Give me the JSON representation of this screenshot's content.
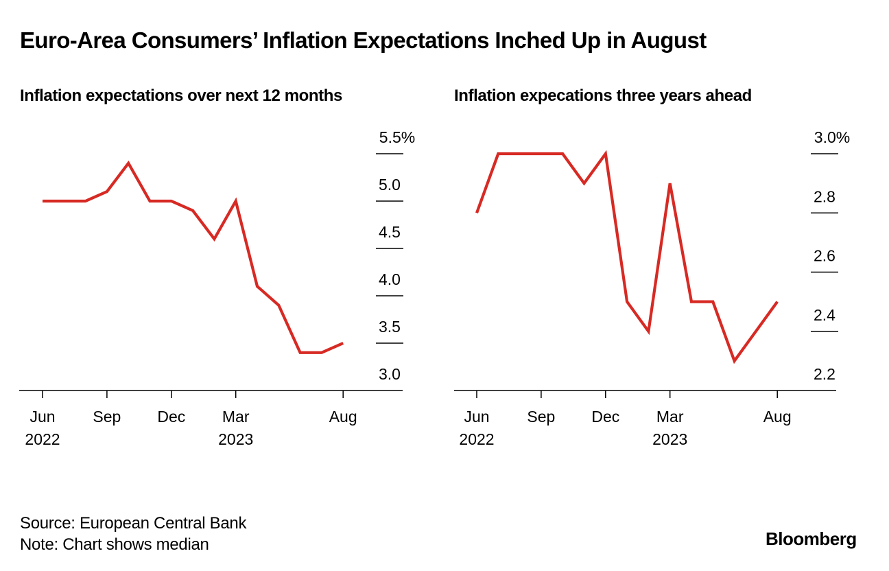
{
  "header": {
    "title": "Euro-Area Consumers’ Inflation Expectations Inched Up in August"
  },
  "chart_data": [
    {
      "type": "line",
      "title": "Inflation expectations over next 12 months",
      "x": [
        "Jun 2022",
        "Jul 2022",
        "Aug 2022",
        "Sep 2022",
        "Oct 2022",
        "Nov 2022",
        "Dec 2022",
        "Jan 2023",
        "Feb 2023",
        "Mar 2023",
        "Apr 2023",
        "May 2023",
        "Jun 2023",
        "Jul 2023",
        "Aug 2023"
      ],
      "series": [
        {
          "name": "Median",
          "values": [
            5.0,
            5.0,
            5.0,
            5.1,
            5.4,
            5.0,
            5.0,
            4.9,
            4.6,
            5.0,
            4.1,
            3.9,
            3.4,
            3.4,
            3.5
          ]
        }
      ],
      "xticks": [
        {
          "index": 0,
          "label": "Jun",
          "year": "2022"
        },
        {
          "index": 3,
          "label": "Sep",
          "year": ""
        },
        {
          "index": 6,
          "label": "Dec",
          "year": ""
        },
        {
          "index": 9,
          "label": "Mar",
          "year": "2023"
        },
        {
          "index": 14,
          "label": "Aug",
          "year": ""
        }
      ],
      "yticks": [
        {
          "value": 5.5,
          "label": "5.5%"
        },
        {
          "value": 5.0,
          "label": "5.0"
        },
        {
          "value": 4.5,
          "label": "4.5"
        },
        {
          "value": 4.0,
          "label": "4.0"
        },
        {
          "value": 3.5,
          "label": "3.5"
        },
        {
          "value": 3.0,
          "label": "3.0"
        }
      ],
      "ylim": [
        3.0,
        5.5
      ],
      "xlabel": "",
      "ylabel": "",
      "y_axis_side": "right",
      "line_color": "#d72a24",
      "grid": false
    },
    {
      "type": "line",
      "title": "Inflation expecations three years ahead",
      "x": [
        "Jun 2022",
        "Jul 2022",
        "Aug 2022",
        "Sep 2022",
        "Oct 2022",
        "Nov 2022",
        "Dec 2022",
        "Jan 2023",
        "Feb 2023",
        "Mar 2023",
        "Apr 2023",
        "May 2023",
        "Jun 2023",
        "Jul 2023",
        "Aug 2023"
      ],
      "series": [
        {
          "name": "Median",
          "values": [
            2.8,
            3.0,
            3.0,
            3.0,
            3.0,
            2.9,
            3.0,
            2.5,
            2.4,
            2.9,
            2.5,
            2.5,
            2.3,
            2.4,
            2.5
          ]
        }
      ],
      "xticks": [
        {
          "index": 0,
          "label": "Jun",
          "year": "2022"
        },
        {
          "index": 3,
          "label": "Sep",
          "year": ""
        },
        {
          "index": 6,
          "label": "Dec",
          "year": ""
        },
        {
          "index": 9,
          "label": "Mar",
          "year": "2023"
        },
        {
          "index": 14,
          "label": "Aug",
          "year": ""
        }
      ],
      "yticks": [
        {
          "value": 3.0,
          "label": "3.0%"
        },
        {
          "value": 2.8,
          "label": "2.8"
        },
        {
          "value": 2.6,
          "label": "2.6"
        },
        {
          "value": 2.4,
          "label": "2.4"
        },
        {
          "value": 2.2,
          "label": "2.2"
        }
      ],
      "ylim": [
        2.2,
        3.0
      ],
      "xlabel": "",
      "ylabel": "",
      "y_axis_side": "right",
      "line_color": "#d72a24",
      "grid": false
    }
  ],
  "footer": {
    "source": "Source: European Central Bank",
    "note": "Note: Chart shows median",
    "brand": "Bloomberg"
  }
}
